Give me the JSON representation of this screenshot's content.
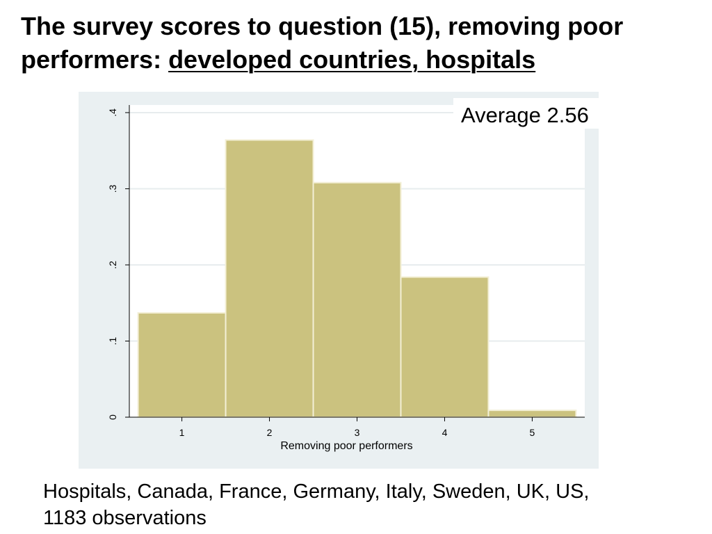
{
  "slide": {
    "title_part1": "The survey scores to question (15), removing poor performers: ",
    "title_part2": "developed countries, hospitals",
    "footnote_line1": "Hospitals, Canada, France, Germany, Italy, Sweden, UK, US,",
    "footnote_line2": "1183 observations"
  },
  "chart_data": {
    "type": "bar",
    "title": "",
    "xlabel": "Removing poor performers",
    "ylabel": "",
    "categories": [
      "1",
      "2",
      "3",
      "4",
      "5"
    ],
    "values": [
      0.137,
      0.364,
      0.308,
      0.184,
      0.009
    ],
    "x_ticks": [
      "1",
      "2",
      "3",
      "4",
      "5"
    ],
    "y_ticks": [
      "0",
      ".1",
      ".2",
      ".3",
      ".4"
    ],
    "y_tick_values": [
      0,
      0.1,
      0.2,
      0.3,
      0.4
    ],
    "ylim": [
      0,
      0.41
    ],
    "grid": true,
    "annotation": "Average 2.56",
    "colors": {
      "bar_fill": "#cbc27f",
      "bar_edge": "#f3efd6",
      "panel_background": "#eaf0f2",
      "plot_background": "#ffffff",
      "gridline": "#e7ecee"
    }
  }
}
